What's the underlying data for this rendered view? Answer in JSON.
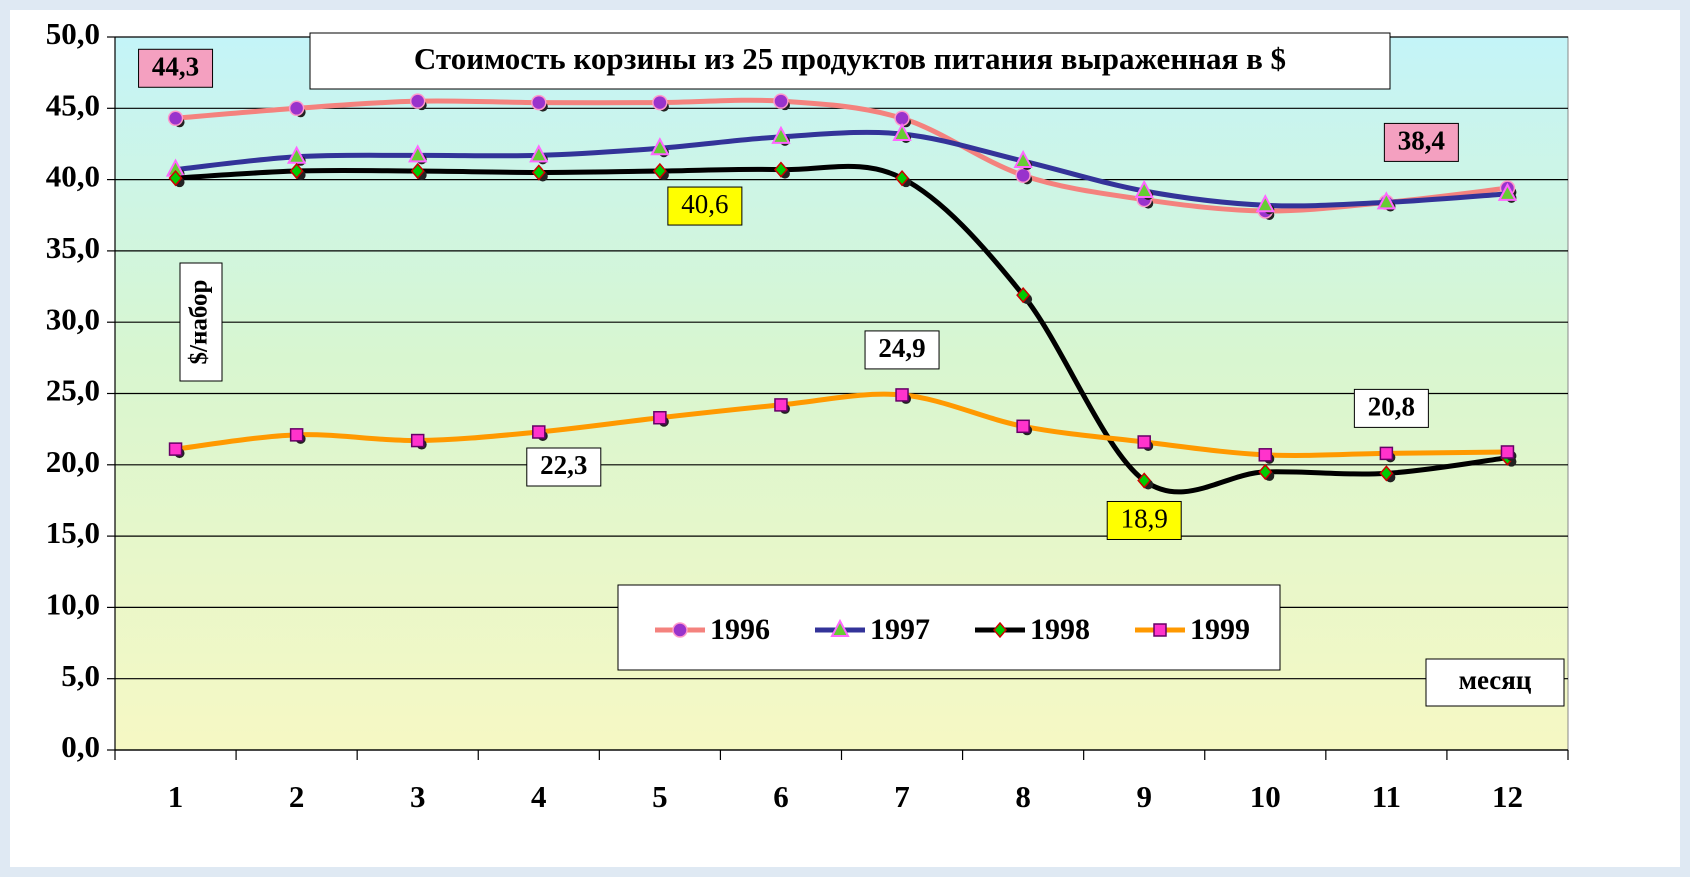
{
  "chart_data": {
    "type": "line",
    "title": "Стоимость корзины из 25 продуктов питания выраженная в $",
    "y_label": "$/набор",
    "x_label": "месяц",
    "categories": [
      "1",
      "2",
      "3",
      "4",
      "5",
      "6",
      "7",
      "8",
      "9",
      "10",
      "11",
      "12"
    ],
    "series": [
      {
        "name": "1996",
        "color": "#f4827e",
        "values": [
          44.3,
          45.0,
          45.5,
          45.4,
          45.4,
          45.5,
          44.3,
          40.3,
          38.6,
          37.8,
          38.4,
          39.4
        ],
        "value_labels": [
          "44,3",
          null,
          null,
          null,
          null,
          null,
          null,
          null,
          null,
          null,
          "38,4",
          null
        ]
      },
      {
        "name": "1997",
        "color": "#333399",
        "values": [
          40.7,
          41.6,
          41.7,
          41.7,
          42.2,
          43.0,
          43.2,
          41.3,
          39.2,
          38.2,
          38.4,
          39.0
        ]
      },
      {
        "name": "1998",
        "color": "#000000",
        "values": [
          40.1,
          40.6,
          40.6,
          40.5,
          40.6,
          40.7,
          40.1,
          31.9,
          18.9,
          19.5,
          19.4,
          20.5
        ],
        "value_labels": [
          null,
          null,
          null,
          null,
          "40,6",
          null,
          null,
          null,
          "18,9",
          null,
          null,
          null
        ]
      },
      {
        "name": "1999",
        "color": "#ff9900",
        "values": [
          21.1,
          22.1,
          21.7,
          22.3,
          23.3,
          24.2,
          24.9,
          22.7,
          21.6,
          20.7,
          20.8,
          20.9
        ],
        "value_labels": [
          null,
          null,
          null,
          "22,3",
          null,
          null,
          "24,9",
          null,
          null,
          null,
          "20,8",
          null
        ]
      }
    ],
    "ylim": [
      0,
      50
    ],
    "yticks": [
      {
        "value": 0,
        "label": "0,0"
      },
      {
        "value": 5,
        "label": "5,0"
      },
      {
        "value": 10,
        "label": "10,0"
      },
      {
        "value": 15,
        "label": "15,0"
      },
      {
        "value": 20,
        "label": "20,0"
      },
      {
        "value": 25,
        "label": "25,0"
      },
      {
        "value": 30,
        "label": "30,0"
      },
      {
        "value": 35,
        "label": "35,0"
      },
      {
        "value": 40,
        "label": "40,0"
      },
      {
        "value": 45,
        "label": "45,0"
      },
      {
        "value": 50,
        "label": "50,0"
      }
    ],
    "grid": true,
    "legend": "bottom"
  }
}
